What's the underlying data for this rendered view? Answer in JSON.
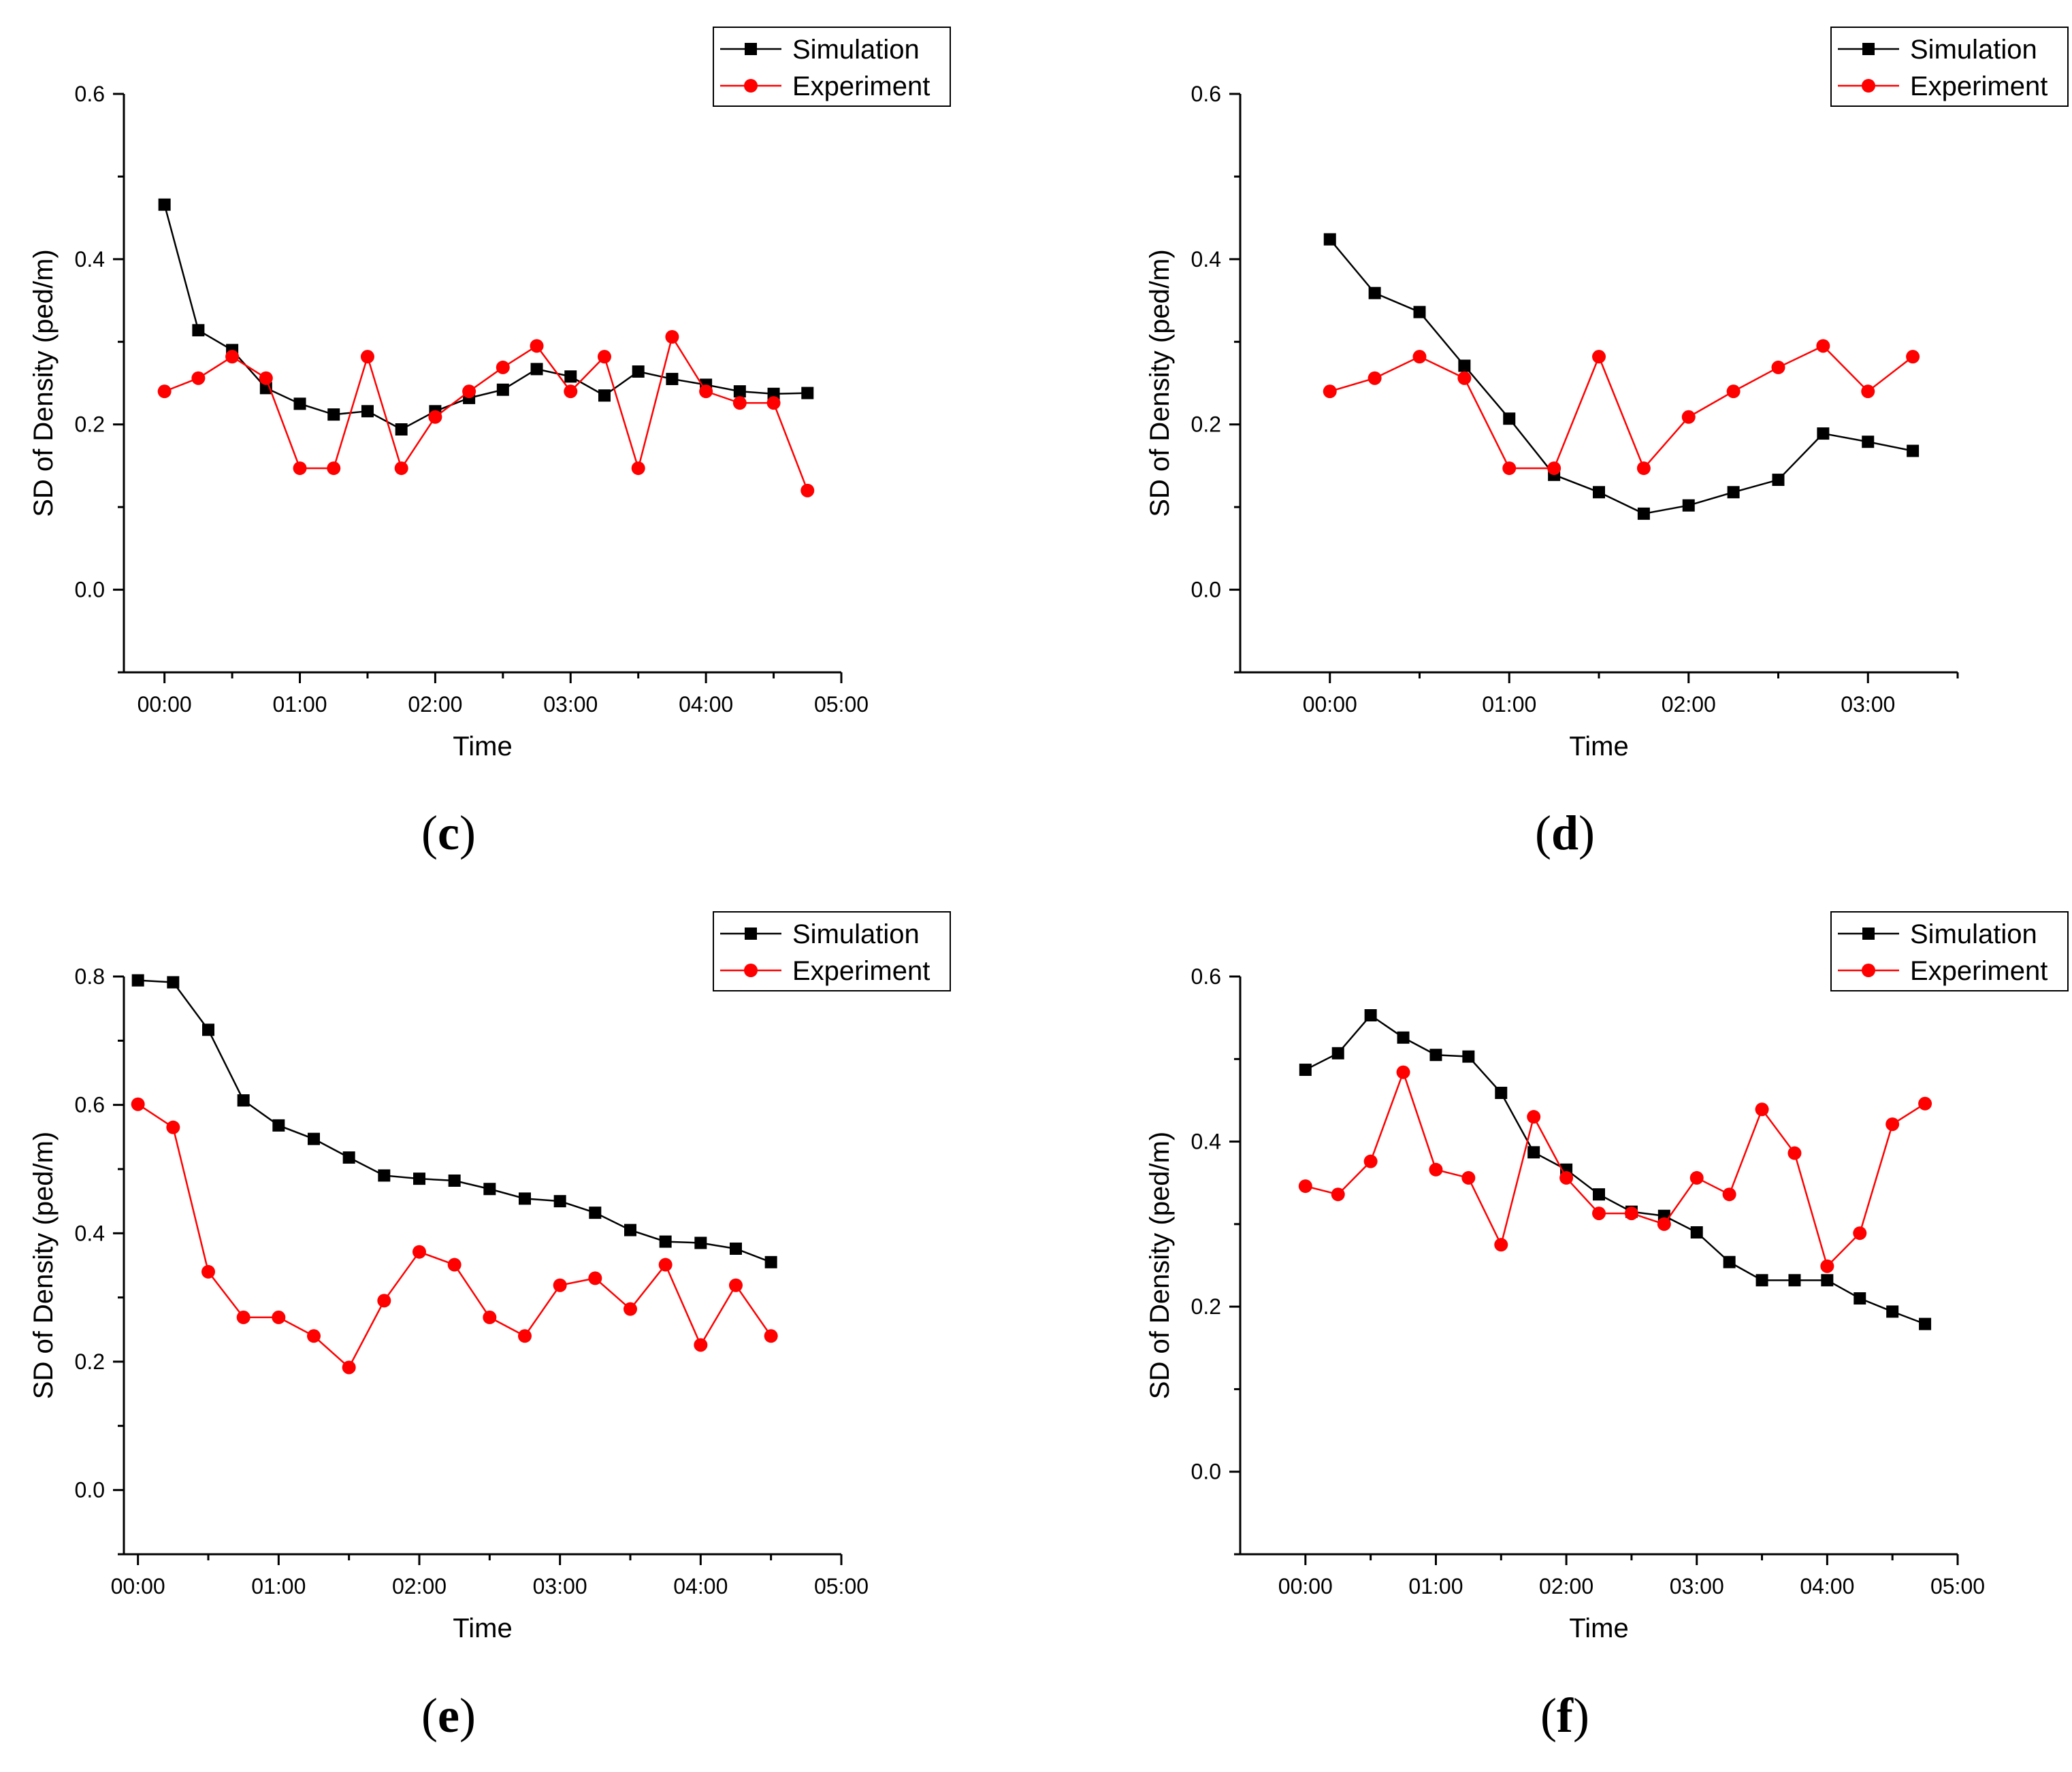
{
  "chart_data": [
    {
      "type": "line",
      "panel_label": "c",
      "xlabel": "Time",
      "ylabel": "SD of Density (ped/m)",
      "xtick_labels": [
        "00:00",
        "01:00",
        "02:00",
        "03:00",
        "04:00",
        "05:00"
      ],
      "xlim_hours": [
        -0.3,
        5.0
      ],
      "ylim": [
        -0.1,
        0.6
      ],
      "ytick_values": [
        0.0,
        0.2,
        0.4,
        0.6
      ],
      "ytick_labels": [
        "0.0",
        "0.2",
        "0.4",
        "0.6"
      ],
      "legend_position": "top-right",
      "grid": false,
      "series": [
        {
          "name": "Simulation",
          "color": "#000000",
          "marker": "square",
          "x_hours": [
            0,
            0.25,
            0.5,
            0.75,
            1.0,
            1.25,
            1.5,
            1.75,
            2.0,
            2.25,
            2.5,
            2.75,
            3.0,
            3.25,
            3.5,
            3.75,
            4.0,
            4.25,
            4.5,
            4.75
          ],
          "values": [
            0.466,
            0.314,
            0.29,
            0.244,
            0.225,
            0.212,
            0.216,
            0.194,
            0.216,
            0.232,
            0.242,
            0.267,
            0.258,
            0.235,
            0.264,
            0.255,
            0.248,
            0.24,
            0.237,
            0.238
          ]
        },
        {
          "name": "Experiment",
          "color": "#ff0000",
          "marker": "circle",
          "x_hours": [
            0,
            0.25,
            0.5,
            0.75,
            1.0,
            1.25,
            1.5,
            1.75,
            2.0,
            2.25,
            2.5,
            2.75,
            3.0,
            3.25,
            3.5,
            3.75,
            4.0,
            4.25,
            4.5,
            4.75
          ],
          "values": [
            0.24,
            0.256,
            0.282,
            0.256,
            0.147,
            0.147,
            0.282,
            0.147,
            0.209,
            0.24,
            0.269,
            0.295,
            0.24,
            0.282,
            0.147,
            0.306,
            0.24,
            0.226,
            0.226,
            0.12
          ]
        }
      ]
    },
    {
      "type": "line",
      "panel_label": "d",
      "xlabel": "Time",
      "ylabel": "SD of Density (ped/m)",
      "xtick_labels": [
        "00:00",
        "01:00",
        "02:00",
        "03:00"
      ],
      "xlim_hours": [
        -0.5,
        3.5
      ],
      "ylim": [
        -0.1,
        0.6
      ],
      "ytick_values": [
        0.0,
        0.2,
        0.4,
        0.6
      ],
      "ytick_labels": [
        "0.0",
        "0.2",
        "0.4",
        "0.6"
      ],
      "legend_position": "top-right",
      "grid": false,
      "series": [
        {
          "name": "Simulation",
          "color": "#000000",
          "marker": "square",
          "x_hours": [
            0,
            0.25,
            0.5,
            0.75,
            1.0,
            1.25,
            1.5,
            1.75,
            2.0,
            2.25,
            2.5,
            2.75,
            3.0,
            3.25
          ],
          "values": [
            0.424,
            0.359,
            0.336,
            0.271,
            0.207,
            0.139,
            0.118,
            0.092,
            0.102,
            0.118,
            0.133,
            0.189,
            0.179,
            0.168
          ]
        },
        {
          "name": "Experiment",
          "color": "#ff0000",
          "marker": "circle",
          "x_hours": [
            0,
            0.25,
            0.5,
            0.75,
            1.0,
            1.25,
            1.5,
            1.75,
            2.0,
            2.25,
            2.5,
            2.75,
            3.0,
            3.25
          ],
          "values": [
            0.24,
            0.256,
            0.282,
            0.256,
            0.147,
            0.147,
            0.282,
            0.147,
            0.209,
            0.24,
            0.269,
            0.295,
            0.24,
            0.282
          ]
        }
      ]
    },
    {
      "type": "line",
      "panel_label": "e",
      "xlabel": "Time",
      "ylabel": "SD of Density (ped/m)",
      "xtick_labels": [
        "00:00",
        "01:00",
        "02:00",
        "03:00",
        "04:00",
        "05:00"
      ],
      "xlim_hours": [
        -0.1,
        5.0
      ],
      "ylim": [
        -0.1,
        0.8
      ],
      "ytick_values": [
        0.0,
        0.2,
        0.4,
        0.6,
        0.8
      ],
      "ytick_labels": [
        "0.0",
        "0.2",
        "0.4",
        "0.6",
        "0.8"
      ],
      "legend_position": "top-right",
      "grid": false,
      "series": [
        {
          "name": "Simulation",
          "color": "#000000",
          "marker": "square",
          "x_hours": [
            0,
            0.25,
            0.5,
            0.75,
            1.0,
            1.25,
            1.5,
            1.75,
            2.0,
            2.25,
            2.5,
            2.75,
            3.0,
            3.25,
            3.5,
            3.75,
            4.0,
            4.25,
            4.5
          ],
          "values": [
            0.794,
            0.791,
            0.717,
            0.607,
            0.568,
            0.547,
            0.518,
            0.49,
            0.485,
            0.482,
            0.469,
            0.454,
            0.45,
            0.432,
            0.405,
            0.387,
            0.385,
            0.376,
            0.355
          ]
        },
        {
          "name": "Experiment",
          "color": "#ff0000",
          "marker": "circle",
          "x_hours": [
            0,
            0.25,
            0.5,
            0.75,
            1.0,
            1.25,
            1.5,
            1.75,
            2.0,
            2.25,
            2.5,
            2.75,
            3.0,
            3.25,
            3.5,
            3.75,
            4.0,
            4.25,
            4.5
          ],
          "values": [
            0.601,
            0.565,
            0.34,
            0.269,
            0.269,
            0.24,
            0.191,
            0.295,
            0.371,
            0.351,
            0.269,
            0.24,
            0.319,
            0.33,
            0.282,
            0.351,
            0.226,
            0.319,
            0.24
          ]
        }
      ]
    },
    {
      "type": "line",
      "panel_label": "f",
      "xlabel": "Time",
      "ylabel": "SD of Density (ped/m)",
      "xtick_labels": [
        "00:00",
        "01:00",
        "02:00",
        "03:00",
        "04:00",
        "05:00"
      ],
      "xlim_hours": [
        -0.5,
        5.0
      ],
      "ylim": [
        -0.1,
        0.6
      ],
      "ytick_values": [
        0.0,
        0.2,
        0.4,
        0.6
      ],
      "ytick_labels": [
        "0.0",
        "0.2",
        "0.4",
        "0.6"
      ],
      "legend_position": "top-right",
      "grid": false,
      "series": [
        {
          "name": "Simulation",
          "color": "#000000",
          "marker": "square",
          "x_hours": [
            0,
            0.25,
            0.5,
            0.75,
            1.0,
            1.25,
            1.5,
            1.75,
            2.0,
            2.25,
            2.5,
            2.75,
            3.0,
            3.25,
            3.5,
            3.75,
            4.0,
            4.25,
            4.5,
            4.75
          ],
          "values": [
            0.487,
            0.507,
            0.553,
            0.526,
            0.505,
            0.503,
            0.459,
            0.387,
            0.366,
            0.336,
            0.315,
            0.31,
            0.29,
            0.254,
            0.232,
            0.232,
            0.232,
            0.21,
            0.194,
            0.179
          ]
        },
        {
          "name": "Experiment",
          "color": "#ff0000",
          "marker": "circle",
          "x_hours": [
            0,
            0.25,
            0.5,
            0.75,
            1.0,
            1.25,
            1.5,
            1.75,
            2.0,
            2.25,
            2.5,
            2.75,
            3.0,
            3.25,
            3.5,
            3.75,
            4.0,
            4.25,
            4.5,
            4.75
          ],
          "values": [
            0.346,
            0.336,
            0.376,
            0.484,
            0.366,
            0.356,
            0.275,
            0.43,
            0.356,
            0.313,
            0.313,
            0.3,
            0.356,
            0.336,
            0.439,
            0.386,
            0.249,
            0.289,
            0.421,
            0.446
          ]
        }
      ]
    }
  ]
}
